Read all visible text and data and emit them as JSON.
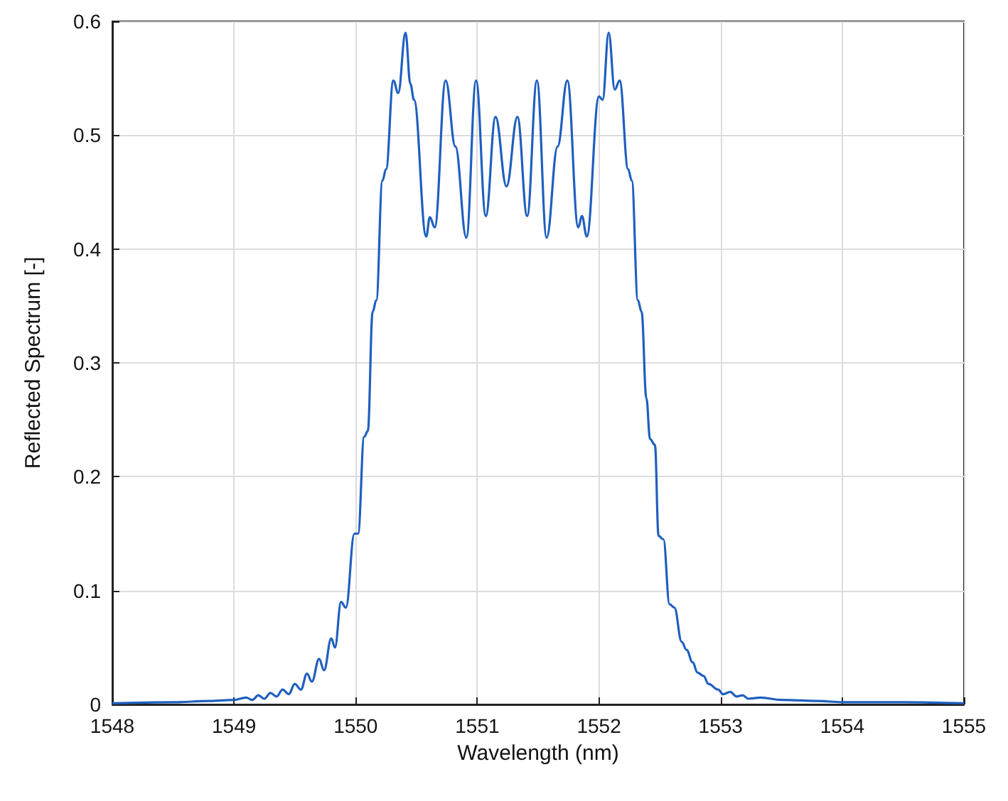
{
  "chart_data": {
    "type": "line",
    "xlabel": "Wavelength (nm)",
    "ylabel": "Reflected Spectrum [-]",
    "xlim": [
      1548,
      1555
    ],
    "xticks": [
      1548,
      1549,
      1550,
      1551,
      1552,
      1553,
      1554,
      1555
    ],
    "ylim": [
      0,
      0.6
    ],
    "yticks": [
      0,
      0.1,
      0.2,
      0.3,
      0.4,
      0.5,
      0.6
    ],
    "grid": true,
    "marker": "none",
    "line_style": "solid",
    "series": [
      {
        "color": "#1f5fbf",
        "x": [
          1548,
          1548.5,
          1548.8,
          1549,
          1549.1,
          1549.15,
          1549.2,
          1549.25,
          1549.3,
          1549.35,
          1549.4,
          1549.45,
          1549.5,
          1549.55,
          1549.6,
          1549.64,
          1549.7,
          1549.74,
          1549.8,
          1549.83,
          1549.88,
          1549.92,
          1549.99,
          1550.02,
          1550.07,
          1550.1,
          1550.14,
          1550.17,
          1550.22,
          1550.25,
          1550.31,
          1550.35,
          1550.41,
          1550.45,
          1550.48,
          1550.58,
          1550.61,
          1550.65,
          1550.74,
          1550.82,
          1550.91,
          1550.99,
          1551.07,
          1551.15,
          1551.24,
          1551.33,
          1551.41,
          1551.49,
          1551.57,
          1551.66,
          1551.74,
          1551.83,
          1551.86,
          1551.9,
          1552,
          1552.03,
          1552.08,
          1552.13,
          1552.17,
          1552.24,
          1552.27,
          1552.32,
          1552.35,
          1552.39,
          1552.42,
          1552.46,
          1552.49,
          1552.53,
          1552.58,
          1552.62,
          1552.68,
          1552.72,
          1552.77,
          1552.81,
          1552.86,
          1552.9,
          1552.98,
          1553.02,
          1553.08,
          1553.13,
          1553.18,
          1553.23,
          1553.33,
          1553.5,
          1553.8,
          1554,
          1554.5,
          1555
        ],
        "values": [
          0.001,
          0.002,
          0.003,
          0.004,
          0.006,
          0.004,
          0.008,
          0.005,
          0.01,
          0.007,
          0.013,
          0.009,
          0.018,
          0.013,
          0.027,
          0.02,
          0.04,
          0.03,
          0.058,
          0.05,
          0.09,
          0.085,
          0.15,
          0.15,
          0.235,
          0.24,
          0.345,
          0.355,
          0.46,
          0.47,
          0.548,
          0.537,
          0.59,
          0.545,
          0.531,
          0.411,
          0.428,
          0.419,
          0.548,
          0.49,
          0.41,
          0.548,
          0.429,
          0.516,
          0.455,
          0.516,
          0.429,
          0.548,
          0.41,
          0.49,
          0.548,
          0.419,
          0.429,
          0.411,
          0.534,
          0.531,
          0.59,
          0.54,
          0.548,
          0.47,
          0.46,
          0.355,
          0.345,
          0.269,
          0.233,
          0.228,
          0.148,
          0.145,
          0.088,
          0.085,
          0.055,
          0.048,
          0.037,
          0.028,
          0.025,
          0.018,
          0.013,
          0.009,
          0.011,
          0.007,
          0.008,
          0.005,
          0.006,
          0.004,
          0.003,
          0.002,
          0.002,
          0.001
        ]
      }
    ]
  }
}
